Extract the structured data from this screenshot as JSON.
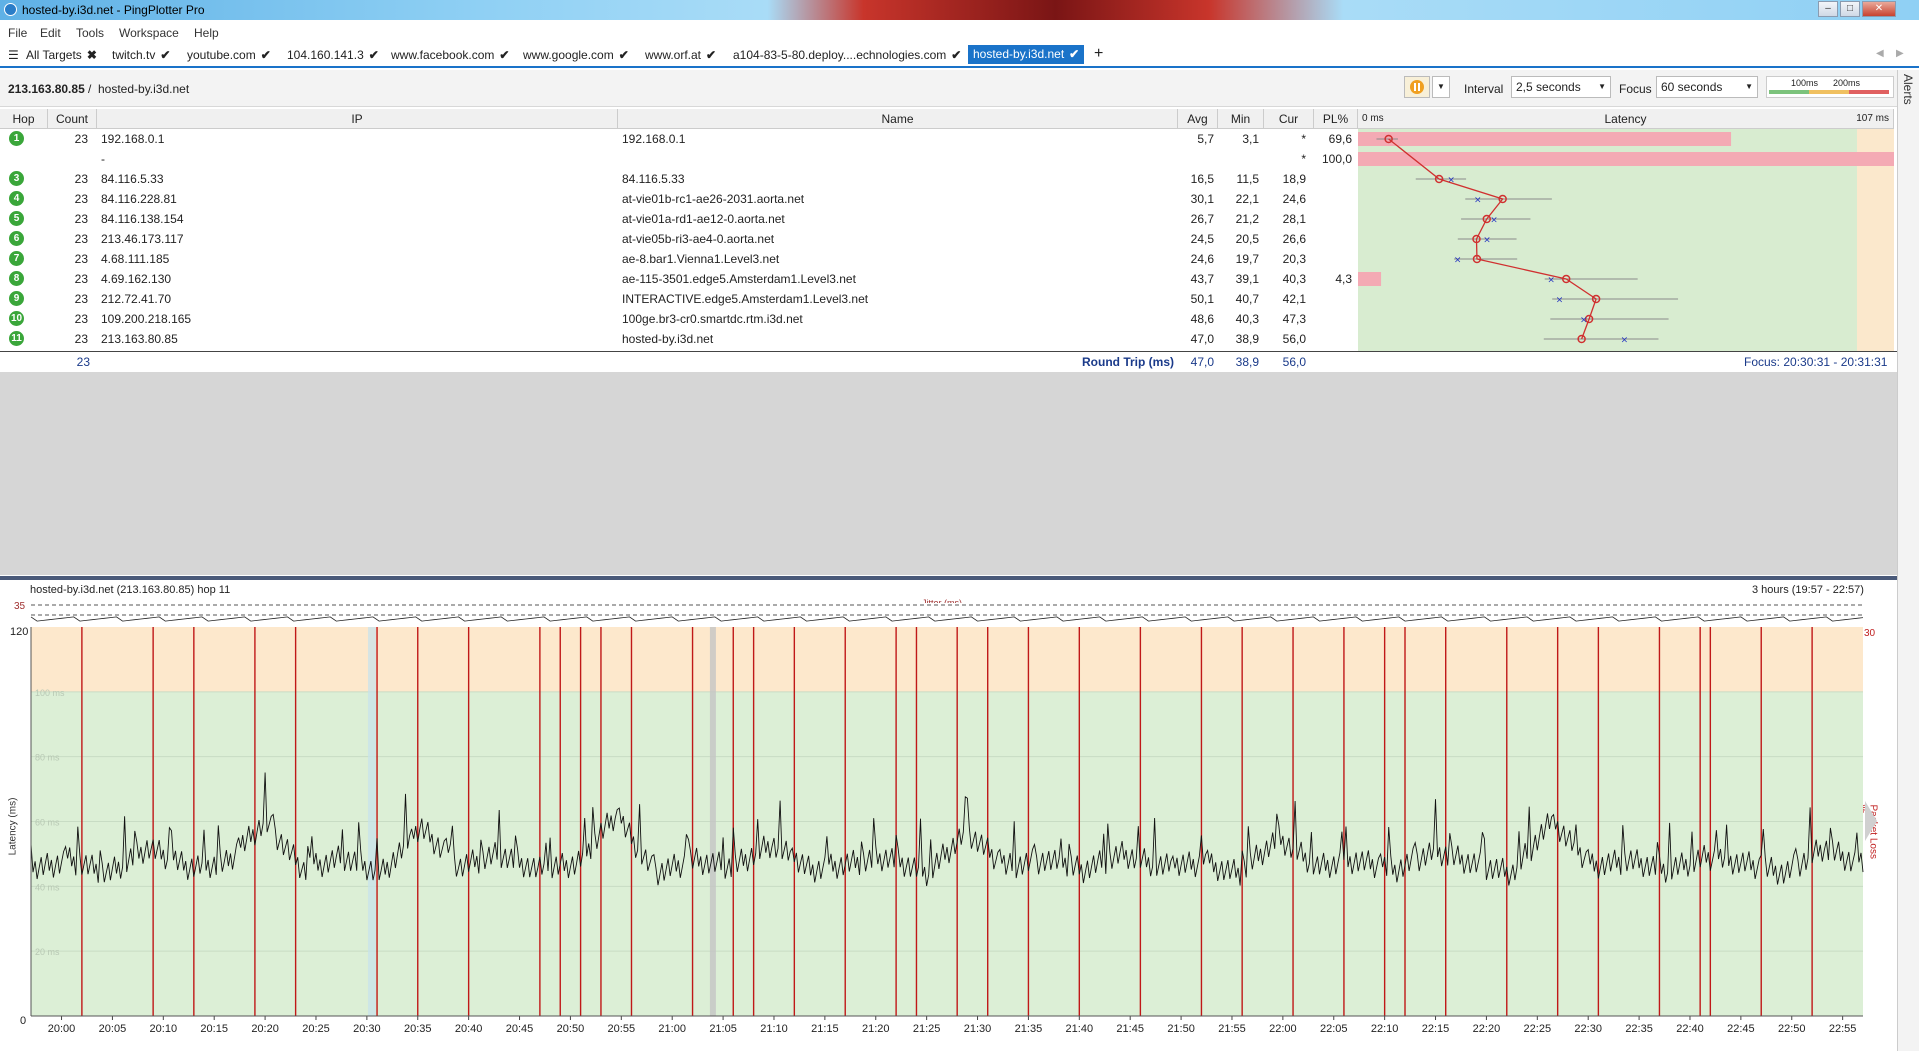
{
  "window": {
    "title": "hosted-by.i3d.net - PingPlotter Pro",
    "controls": [
      "minimize",
      "maximize",
      "close"
    ]
  },
  "menu": [
    "File",
    "Edit",
    "Tools",
    "Workspace",
    "Help"
  ],
  "tabs": [
    {
      "label": "All Targets",
      "mark": "✖",
      "active": false
    },
    {
      "label": "twitch.tv",
      "mark": "✔",
      "active": false
    },
    {
      "label": "youtube.com",
      "mark": "✔",
      "active": false
    },
    {
      "label": "104.160.141.3",
      "mark": "✔",
      "active": false
    },
    {
      "label": "www.facebook.com",
      "mark": "✔",
      "active": false
    },
    {
      "label": "www.google.com",
      "mark": "✔",
      "active": false
    },
    {
      "label": "www.orf.at",
      "mark": "✔",
      "active": false
    },
    {
      "label": "a104-83-5-80.deploy....echnologies.com",
      "mark": "✔",
      "active": false
    },
    {
      "label": "hosted-by.i3d.net",
      "mark": "✔",
      "active": true
    }
  ],
  "add_tab": "+",
  "target": {
    "ip": "213.163.80.85",
    "sep": "/",
    "host": "hosted-by.i3d.net"
  },
  "controls": {
    "interval_label": "Interval",
    "interval_value": "2,5 seconds",
    "focus_label": "Focus",
    "focus_value": "60 seconds",
    "scale_100": "100ms",
    "scale_200": "200ms"
  },
  "alerts_label": "Alerts",
  "table": {
    "headers": {
      "hop": "Hop",
      "count": "Count",
      "ip": "IP",
      "name": "Name",
      "avg": "Avg",
      "min": "Min",
      "cur": "Cur",
      "pl": "PL%",
      "latency": "Latency"
    },
    "latency_min_label": "0 ms",
    "latency_max_label": "107 ms",
    "rows": [
      {
        "hop": "1",
        "count": "23",
        "ip": "192.168.0.1",
        "name": "192.168.0.1",
        "avg": "5,7",
        "min": "3,1",
        "cur": "*",
        "pl": "69,6"
      },
      {
        "hop": "",
        "count": "",
        "ip": "-",
        "name": "",
        "avg": "",
        "min": "",
        "cur": "*",
        "pl": "100,0"
      },
      {
        "hop": "3",
        "count": "23",
        "ip": "84.116.5.33",
        "name": "84.116.5.33",
        "avg": "16,5",
        "min": "11,5",
        "cur": "18,9",
        "pl": ""
      },
      {
        "hop": "4",
        "count": "23",
        "ip": "84.116.228.81",
        "name": "at-vie01b-rc1-ae26-2031.aorta.net",
        "avg": "30,1",
        "min": "22,1",
        "cur": "24,6",
        "pl": ""
      },
      {
        "hop": "5",
        "count": "23",
        "ip": "84.116.138.154",
        "name": "at-vie01a-rd1-ae12-0.aorta.net",
        "avg": "26,7",
        "min": "21,2",
        "cur": "28,1",
        "pl": ""
      },
      {
        "hop": "6",
        "count": "23",
        "ip": "213.46.173.117",
        "name": "at-vie05b-ri3-ae4-0.aorta.net",
        "avg": "24,5",
        "min": "20,5",
        "cur": "26,6",
        "pl": ""
      },
      {
        "hop": "7",
        "count": "23",
        "ip": "4.68.111.185",
        "name": "ae-8.bar1.Vienna1.Level3.net",
        "avg": "24,6",
        "min": "19,7",
        "cur": "20,3",
        "pl": ""
      },
      {
        "hop": "8",
        "count": "23",
        "ip": "4.69.162.130",
        "name": "ae-115-3501.edge5.Amsterdam1.Level3.net",
        "avg": "43,7",
        "min": "39,1",
        "cur": "40,3",
        "pl": "4,3"
      },
      {
        "hop": "9",
        "count": "23",
        "ip": "212.72.41.70",
        "name": "INTERACTIVE.edge5.Amsterdam1.Level3.net",
        "avg": "50,1",
        "min": "40,7",
        "cur": "42,1",
        "pl": ""
      },
      {
        "hop": "10",
        "count": "23",
        "ip": "109.200.218.165",
        "name": "100ge.br3-cr0.smartdc.rtm.i3d.net",
        "avg": "48,6",
        "min": "40,3",
        "cur": "47,3",
        "pl": ""
      },
      {
        "hop": "11",
        "count": "23",
        "ip": "213.163.80.85",
        "name": "hosted-by.i3d.net",
        "avg": "47,0",
        "min": "38,9",
        "cur": "56,0",
        "pl": ""
      }
    ],
    "roundtrip": {
      "count": "23",
      "label": "Round Trip (ms)",
      "avg": "47,0",
      "min": "38,9",
      "cur": "56,0",
      "focus": "Focus: 20:30:31 - 20:31:31"
    }
  },
  "timeline": {
    "header_left": "hosted-by.i3d.net (213.163.80.85) hop 11",
    "header_right": "3 hours (19:57 - 22:57)",
    "jitter_label": "Jitter (ms)",
    "jitter_max": "35",
    "y_top": "120",
    "y_bottom": "0",
    "y_label": "Latency (ms)",
    "right_top": "30",
    "right_label": "Packet Loss %",
    "gridlines": [
      "100 ms",
      "80 ms",
      "60 ms",
      "40 ms",
      "20 ms"
    ],
    "x_ticks": [
      "20:00",
      "20:05",
      "20:10",
      "20:15",
      "20:20",
      "20:25",
      "20:30",
      "20:35",
      "20:40",
      "20:45",
      "20:50",
      "20:55",
      "21:00",
      "21:05",
      "21:10",
      "21:15",
      "21:20",
      "21:25",
      "21:30",
      "21:35",
      "21:40",
      "21:45",
      "21:50",
      "21:55",
      "22:00",
      "22:05",
      "22:10",
      "22:15",
      "22:20",
      "22:25",
      "22:30",
      "22:35",
      "22:40",
      "22:45",
      "22:50",
      "22:55"
    ]
  },
  "chart_data": {
    "type": "line",
    "title": "hosted-by.i3d.net (213.163.80.85) hop 11",
    "xlabel": "",
    "ylabel": "Latency (ms)",
    "ylim": [
      0,
      120
    ],
    "x_range": [
      "19:57",
      "22:57"
    ],
    "series": [
      {
        "values": [
          45,
          48,
          44,
          52,
          46,
          47,
          60,
          45,
          49,
          44,
          58,
          46,
          50,
          45,
          47,
          62,
          44,
          48,
          46,
          53,
          45,
          47,
          49,
          44,
          57,
          46,
          48,
          45,
          50,
          46,
          47,
          44,
          55,
          46,
          48,
          45,
          51,
          47,
          44,
          60,
          46,
          48,
          45,
          49,
          47,
          44,
          52,
          46
        ]
      }
    ],
    "packet_loss_minutes": [
      "20:02",
      "20:09",
      "20:13",
      "20:19",
      "20:23",
      "20:31",
      "20:35",
      "20:40",
      "20:47",
      "20:49",
      "20:51",
      "20:53",
      "20:56",
      "21:02",
      "21:06",
      "21:08",
      "21:12",
      "21:17",
      "21:22",
      "21:24",
      "21:28",
      "21:31",
      "21:35",
      "21:40",
      "21:46",
      "21:52",
      "21:56",
      "22:01",
      "22:06",
      "22:10",
      "22:12",
      "22:16",
      "22:22",
      "22:27",
      "22:31",
      "22:37",
      "22:41",
      "22:42",
      "22:47",
      "22:52"
    ]
  }
}
